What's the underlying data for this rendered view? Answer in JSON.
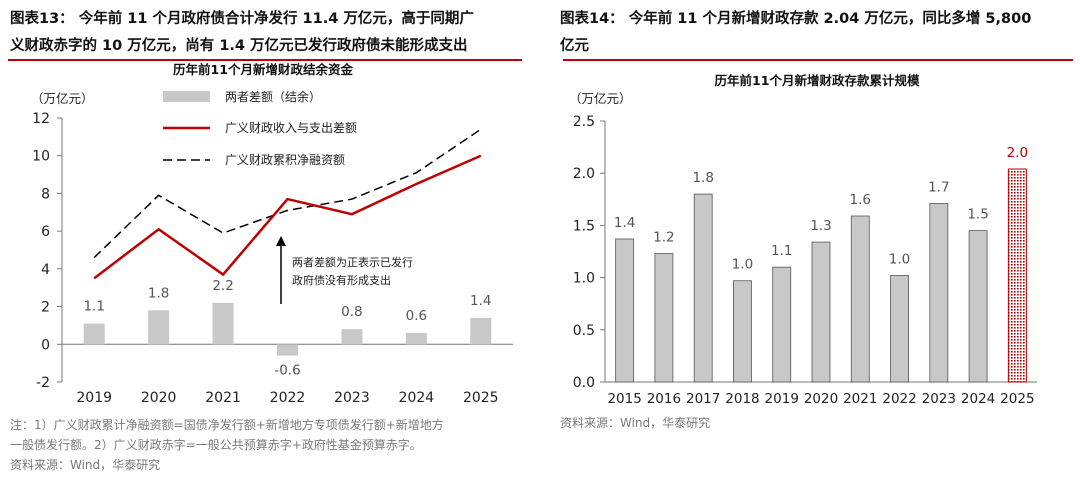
{
  "panel1": {
    "figure_title_line1": "图表13： 今年前 11 个月政府债合计净发行 11.4 万亿元，高于同期广",
    "figure_title_line2": "义财政赤字的 10 万亿元，尚有 1.4 万亿元已发行政府债未能形成支出",
    "note_line1": "注：1）广义财政累计净融资额=国债净发行额+新增地方专项债发行额+新增地方",
    "note_line2": "一般债发行额。2）广义财政赤字=一般公共预算赤字+政府性基金预算赤字。",
    "source": "资料来源：Wind，华泰研究"
  },
  "panel2": {
    "figure_title_line1": "图表14： 今年前 11 个月新增财政存款 2.04 万亿元，同比多增 5,800",
    "figure_title_line2": "亿元",
    "source": "资料来源：Wind，华泰研究"
  },
  "colors": {
    "bar_gray": "#c8c8c8",
    "line_red": "#c00000",
    "line_black": "#000000",
    "accent_red": "#c00000",
    "note_gray": "#7a7a7a"
  },
  "chart_data": [
    {
      "type": "bar",
      "title": "历年前11个月新增财政结余资金",
      "ylabel": "（万亿元）",
      "ylim": [
        -2,
        12
      ],
      "yticks": [
        -2,
        0,
        2,
        4,
        6,
        8,
        10,
        12
      ],
      "categories": [
        "2019",
        "2020",
        "2021",
        "2022",
        "2023",
        "2024",
        "2025"
      ],
      "series": [
        {
          "name": "两者差额（结余）",
          "kind": "bar",
          "values": [
            1.1,
            1.8,
            2.2,
            -0.6,
            0.8,
            0.6,
            1.4
          ],
          "labels": [
            "1.1",
            "1.8",
            "2.2",
            "-0.6",
            "0.8",
            "0.6",
            "1.4"
          ]
        },
        {
          "name": "广义财政收入与支出差额",
          "kind": "line",
          "values": [
            3.5,
            6.1,
            3.7,
            7.7,
            6.9,
            8.5,
            10.0
          ]
        },
        {
          "name": "广义财政累积净融资额",
          "kind": "dashed-line",
          "values": [
            4.6,
            7.9,
            5.9,
            7.1,
            7.7,
            9.1,
            11.4
          ]
        }
      ],
      "annotation": [
        "两者差额为正表示已发行",
        "政府债没有形成支出"
      ]
    },
    {
      "type": "bar",
      "title": "历年前11个月新增财政存款累计规模",
      "ylabel": "（万亿元）",
      "ylim": [
        0,
        2.5
      ],
      "yticks": [
        "0.0",
        "0.5",
        "1.0",
        "1.5",
        "2.0",
        "2.5"
      ],
      "categories": [
        "2015",
        "2016",
        "2017",
        "2018",
        "2019",
        "2020",
        "2021",
        "2022",
        "2023",
        "2024",
        "2025"
      ],
      "values": [
        1.37,
        1.23,
        1.8,
        0.97,
        1.1,
        1.34,
        1.59,
        1.02,
        1.71,
        1.45,
        2.04
      ],
      "labels": [
        "1.4",
        "1.2",
        "1.8",
        "1.0",
        "1.1",
        "1.3",
        "1.6",
        "1.0",
        "1.7",
        "1.5",
        "2.0"
      ],
      "highlight_index": 10
    }
  ]
}
